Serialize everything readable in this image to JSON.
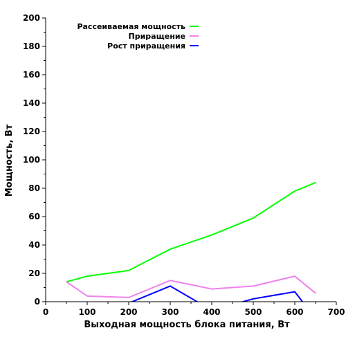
{
  "chart_data": {
    "type": "line",
    "title": "",
    "xlabel": "Выходная мощность блока питания, Вт",
    "ylabel": "Мощность, Вт",
    "xlim": [
      0,
      700
    ],
    "ylim": [
      0,
      200
    ],
    "xticks": [
      0,
      100,
      200,
      300,
      400,
      500,
      600,
      700
    ],
    "yticks": [
      0,
      20,
      40,
      60,
      80,
      100,
      120,
      140,
      160,
      180,
      200
    ],
    "grid": false,
    "legend_position": "top-left",
    "series": [
      {
        "name": "Рассеиваемая мощность",
        "color": "#00ff00",
        "points": [
          [
            50,
            14
          ],
          [
            100,
            18
          ],
          [
            200,
            22
          ],
          [
            300,
            37
          ],
          [
            400,
            47
          ],
          [
            500,
            59
          ],
          [
            600,
            78
          ],
          [
            650,
            84
          ]
        ]
      },
      {
        "name": "Приращение",
        "color": "#ee82ee",
        "points": [
          [
            50,
            14
          ],
          [
            100,
            4
          ],
          [
            200,
            3
          ],
          [
            300,
            15
          ],
          [
            400,
            9
          ],
          [
            500,
            11
          ],
          [
            600,
            18
          ],
          [
            650,
            6
          ]
        ]
      },
      {
        "name": "Рост приращения",
        "color": "#0000ff",
        "points": [
          [
            200,
            -1
          ],
          [
            300,
            11
          ],
          [
            400,
            -6
          ],
          [
            500,
            2
          ],
          [
            600,
            7
          ],
          [
            650,
            -12
          ]
        ]
      }
    ]
  }
}
